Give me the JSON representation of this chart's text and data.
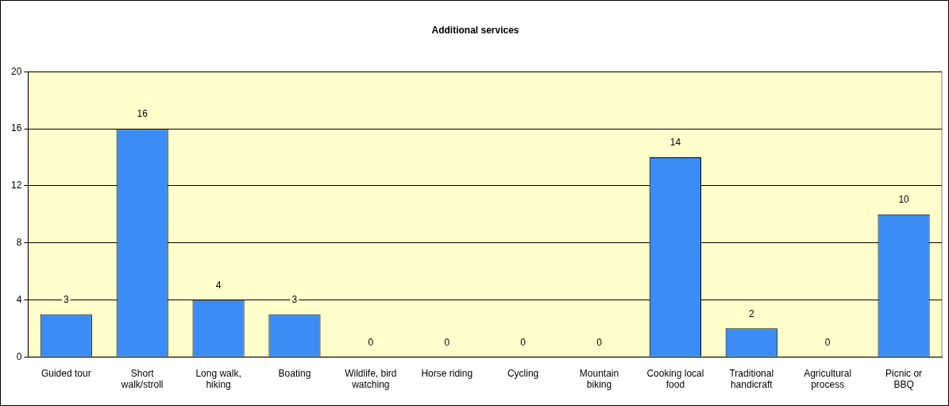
{
  "chart_data": {
    "type": "bar",
    "title": "Additional services",
    "categories": [
      "Guided tour",
      "Short walk/stroll",
      "Long walk, hiking",
      "Boating",
      "Wildlife, bird watching",
      "Horse riding",
      "Cycling",
      "Mountain biking",
      "Cooking local food",
      "Traditional handicraft",
      "Agricultural process",
      "Picnic or BBQ"
    ],
    "values": [
      3,
      16,
      4,
      3,
      0,
      0,
      0,
      0,
      14,
      2,
      0,
      10
    ],
    "color": "#3b8cf5",
    "ylim": [
      0,
      20
    ],
    "yticks": [
      0,
      4,
      8,
      12,
      16,
      20
    ],
    "grid": "y",
    "data_labels": true,
    "legend": false
  }
}
